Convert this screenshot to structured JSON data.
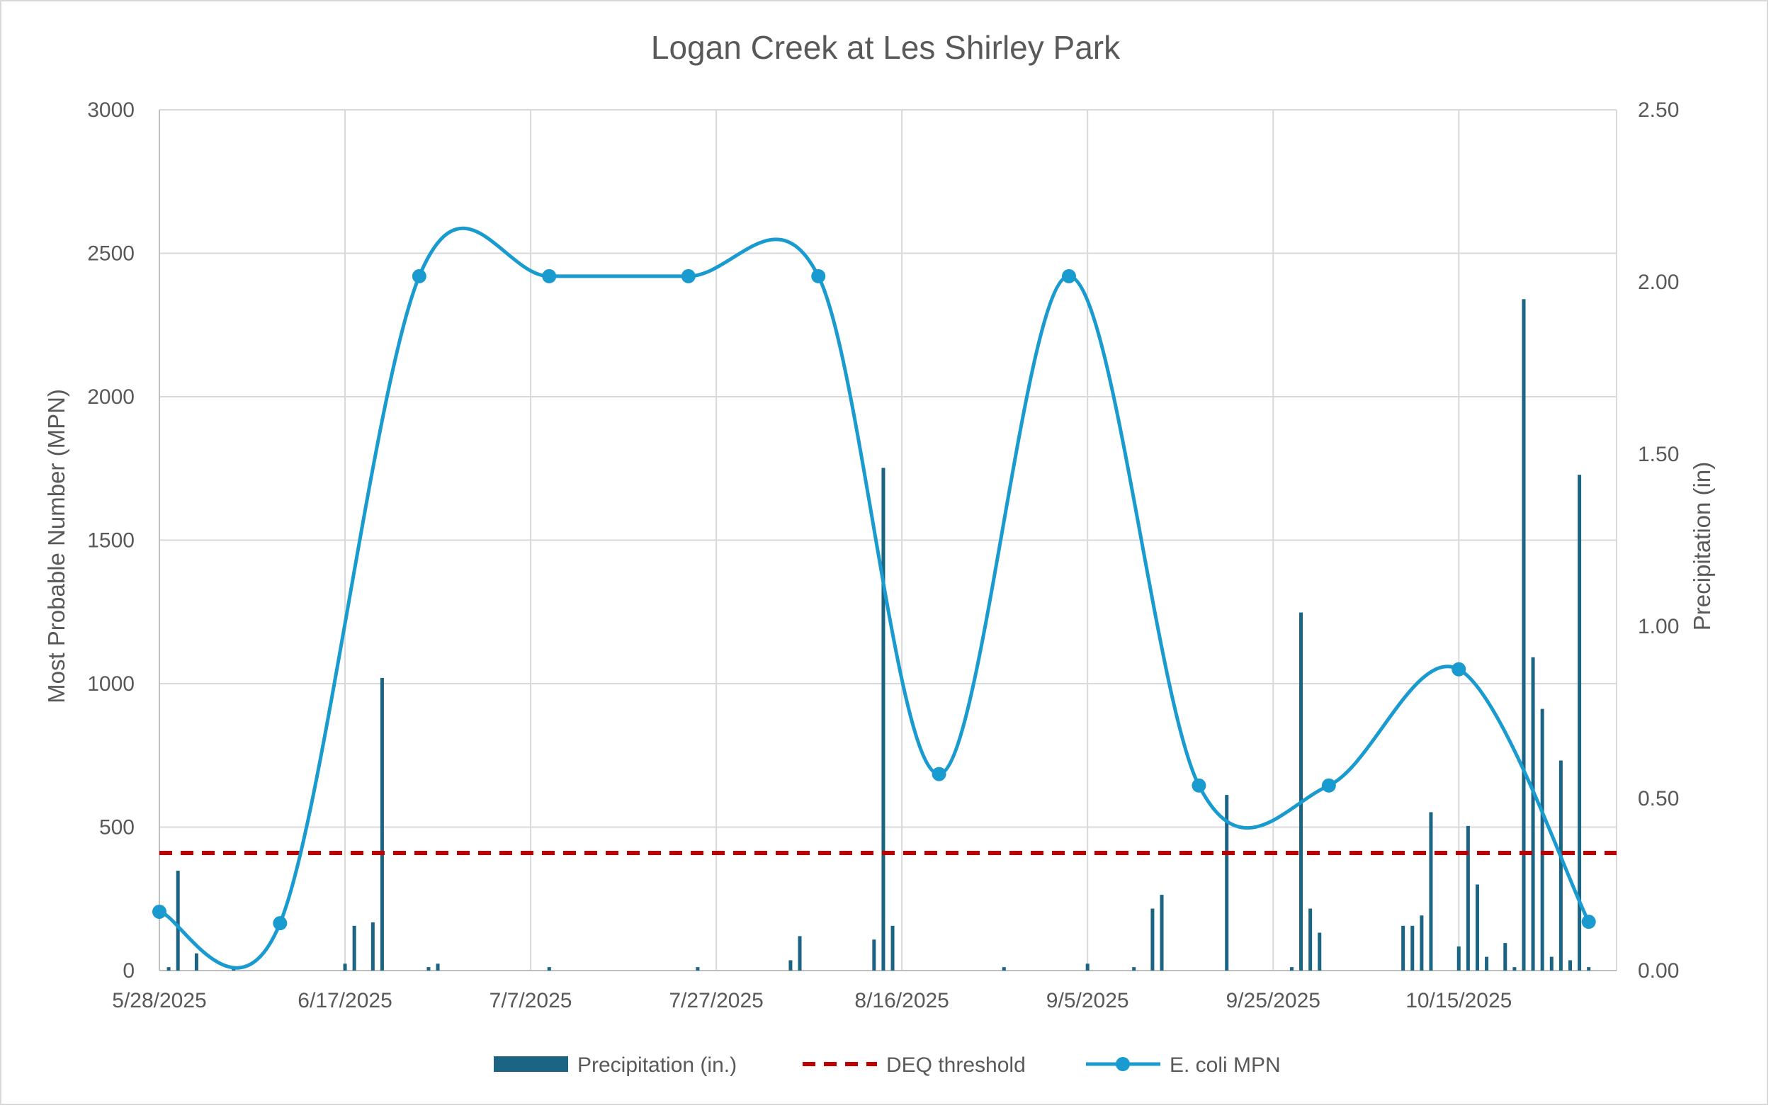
{
  "chart_data": {
    "type": "combo",
    "title": "Logan Creek at Les Shirley Park",
    "y_left_label": "Most Probable Number (MPN)",
    "y_right_label": "Precipitation (in)",
    "y_left_range": [
      0,
      3000
    ],
    "y_left_ticks": [
      "0",
      "500",
      "1000",
      "1500",
      "2000",
      "2500",
      "3000"
    ],
    "y_right_range": [
      0,
      2.5
    ],
    "y_right_ticks": [
      "0.00",
      "0.50",
      "1.00",
      "1.50",
      "2.00",
      "2.50"
    ],
    "x_range": [
      "2025-05-28",
      "2025-11-01"
    ],
    "x_tick_dates": [
      "2025-05-28",
      "2025-06-17",
      "2025-07-07",
      "2025-07-27",
      "2025-08-16",
      "2025-09-05",
      "2025-09-25",
      "2025-10-15"
    ],
    "x_tick_labels": [
      "5/28/2025",
      "6/17/2025",
      "7/7/2025",
      "7/27/2025",
      "8/16/2025",
      "9/5/2025",
      "9/25/2025",
      "10/15/2025"
    ],
    "gridlines": true,
    "legend_position": "bottom",
    "series": [
      {
        "name": "Precipitation (in.)",
        "type": "bar",
        "axis": "right",
        "color": "#1b6483",
        "dates": [
          "2025-05-29",
          "2025-05-30",
          "2025-06-01",
          "2025-06-05",
          "2025-06-17",
          "2025-06-18",
          "2025-06-20",
          "2025-06-21",
          "2025-06-26",
          "2025-06-27",
          "2025-07-09",
          "2025-07-25",
          "2025-08-04",
          "2025-08-05",
          "2025-08-13",
          "2025-08-14",
          "2025-08-15",
          "2025-08-27",
          "2025-09-05",
          "2025-09-10",
          "2025-09-12",
          "2025-09-13",
          "2025-09-20",
          "2025-09-27",
          "2025-09-28",
          "2025-09-29",
          "2025-09-30",
          "2025-10-09",
          "2025-10-10",
          "2025-10-11",
          "2025-10-12",
          "2025-10-15",
          "2025-10-16",
          "2025-10-17",
          "2025-10-18",
          "2025-10-20",
          "2025-10-21",
          "2025-10-22",
          "2025-10-23",
          "2025-10-24",
          "2025-10-25",
          "2025-10-26",
          "2025-10-27",
          "2025-10-28",
          "2025-10-29"
        ],
        "values": [
          0.01,
          0.29,
          0.05,
          0.01,
          0.02,
          0.13,
          0.14,
          0.85,
          0.01,
          0.02,
          0.01,
          0.01,
          0.03,
          0.1,
          0.09,
          1.46,
          0.13,
          0.01,
          0.02,
          0.01,
          0.18,
          0.22,
          0.51,
          0.01,
          1.04,
          0.18,
          0.11,
          0.13,
          0.13,
          0.16,
          0.46,
          0.07,
          0.42,
          0.25,
          0.04,
          0.08,
          0.01,
          1.95,
          0.91,
          0.76,
          0.04,
          0.61,
          0.03,
          1.44,
          0.01
        ]
      },
      {
        "name": "DEQ threshold",
        "type": "line",
        "axis": "left",
        "color": "#c00000",
        "dashed": true,
        "value": 410
      },
      {
        "name": "E. coli MPN",
        "type": "line",
        "axis": "left",
        "color": "#1a9bd0",
        "smooth": true,
        "dates": [
          "2025-05-28",
          "2025-06-10",
          "2025-06-25",
          "2025-07-09",
          "2025-07-24",
          "2025-08-07",
          "2025-08-20",
          "2025-09-03",
          "2025-09-17",
          "2025-10-01",
          "2025-10-15",
          "2025-10-29"
        ],
        "values": [
          205,
          165,
          2420,
          2420,
          2420,
          2420,
          685,
          2420,
          645,
          645,
          1050,
          170
        ]
      }
    ]
  }
}
